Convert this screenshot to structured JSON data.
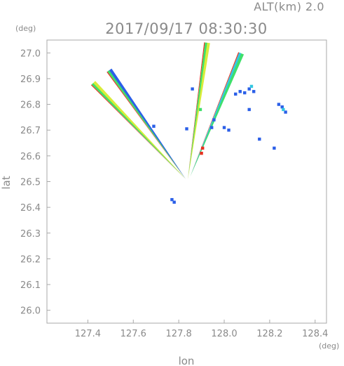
{
  "chart_data": {
    "type": "scatter",
    "title": "2017/09/17 08:30:30",
    "subtitle": "ALT(km) 2.0",
    "xlabel": "lon",
    "ylabel": "lat",
    "x_unit": "(deg)",
    "y_unit": "(deg)",
    "xlim": [
      127.22,
      128.45
    ],
    "ylim": [
      25.95,
      27.05
    ],
    "x_ticks": [
      127.4,
      127.6,
      127.8,
      128.0,
      128.2,
      128.4
    ],
    "x_tick_labels": [
      "127.4",
      "127.6",
      "127.8",
      "128.0",
      "128.2",
      "128.4"
    ],
    "y_ticks": [
      26.0,
      26.1,
      26.2,
      26.3,
      26.4,
      26.5,
      26.6,
      26.7,
      26.8,
      26.9,
      27.0
    ],
    "y_tick_labels": [
      "26.0",
      "26.1",
      "26.2",
      "26.3",
      "26.4",
      "26.5",
      "26.6",
      "26.7",
      "26.8",
      "26.9",
      "27.0"
    ],
    "grid": false,
    "colors": {
      "blue": "#2b5fe8",
      "cyan": "#34c8e0",
      "green": "#3ee06a",
      "yellow": "#d8ec3a",
      "orange": "#f0a020",
      "red": "#e83020"
    },
    "streaks": [
      {
        "from": [
          127.42,
          26.88
        ],
        "to": [
          127.83,
          26.51
        ],
        "colors": [
          "#d8ec3a",
          "#3ee06a",
          "#e83020"
        ]
      },
      {
        "from": [
          127.49,
          26.93
        ],
        "to": [
          127.83,
          26.51
        ],
        "colors": [
          "#2b5fe8",
          "#3ee06a",
          "#e83020"
        ]
      },
      {
        "from": [
          127.92,
          27.04
        ],
        "to": [
          127.84,
          26.51
        ],
        "colors": [
          "#d8ec3a",
          "#3ee06a",
          "#e83020"
        ]
      },
      {
        "from": [
          128.07,
          27.0
        ],
        "to": [
          127.85,
          26.52
        ],
        "colors": [
          "#3ee06a",
          "#34c8e0",
          "#e83020"
        ]
      }
    ],
    "points": [
      {
        "x": 127.86,
        "y": 26.86,
        "color": "#2b5fe8"
      },
      {
        "x": 127.895,
        "y": 26.78,
        "color": "#3ee06a"
      },
      {
        "x": 127.905,
        "y": 26.63,
        "color": "#e83020"
      },
      {
        "x": 127.9,
        "y": 26.61,
        "color": "#e83020"
      },
      {
        "x": 127.69,
        "y": 26.715,
        "color": "#2b5fe8"
      },
      {
        "x": 127.835,
        "y": 26.705,
        "color": "#2b5fe8"
      },
      {
        "x": 127.955,
        "y": 26.74,
        "color": "#2b5fe8"
      },
      {
        "x": 127.945,
        "y": 26.71,
        "color": "#2b5fe8"
      },
      {
        "x": 128.0,
        "y": 26.71,
        "color": "#2b5fe8"
      },
      {
        "x": 128.02,
        "y": 26.7,
        "color": "#2b5fe8"
      },
      {
        "x": 127.77,
        "y": 26.43,
        "color": "#2b5fe8"
      },
      {
        "x": 127.78,
        "y": 26.42,
        "color": "#2b5fe8"
      },
      {
        "x": 128.07,
        "y": 26.85,
        "color": "#2b5fe8"
      },
      {
        "x": 128.09,
        "y": 26.845,
        "color": "#2b5fe8"
      },
      {
        "x": 128.11,
        "y": 26.86,
        "color": "#2b5fe8"
      },
      {
        "x": 128.12,
        "y": 26.87,
        "color": "#34c8e0"
      },
      {
        "x": 128.13,
        "y": 26.85,
        "color": "#2b5fe8"
      },
      {
        "x": 128.05,
        "y": 26.84,
        "color": "#2b5fe8"
      },
      {
        "x": 128.11,
        "y": 26.78,
        "color": "#2b5fe8"
      },
      {
        "x": 128.24,
        "y": 26.8,
        "color": "#2b5fe8"
      },
      {
        "x": 128.255,
        "y": 26.79,
        "color": "#2b5fe8"
      },
      {
        "x": 128.27,
        "y": 26.77,
        "color": "#2b5fe8"
      },
      {
        "x": 128.26,
        "y": 26.78,
        "color": "#34c8e0"
      },
      {
        "x": 128.155,
        "y": 26.665,
        "color": "#2b5fe8"
      },
      {
        "x": 128.22,
        "y": 26.63,
        "color": "#2b5fe8"
      }
    ]
  }
}
